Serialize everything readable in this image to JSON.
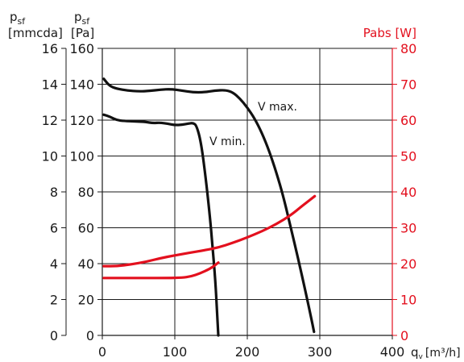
{
  "chart_data": {
    "type": "line",
    "axes": {
      "x": {
        "label": "q",
        "label_sub": "v",
        "label_unit": "[m³/h]",
        "range": [
          0,
          400
        ],
        "ticks": [
          "0",
          "100",
          "200",
          "300",
          "400"
        ]
      },
      "y_left_outer": {
        "label_main": "p",
        "label_sub": "sf",
        "label_unit": "[mmcda]",
        "range": [
          0,
          16
        ],
        "ticks": [
          "0",
          "2",
          "4",
          "6",
          "8",
          "10",
          "12",
          "14",
          "16"
        ]
      },
      "y_left_inner": {
        "label_main": "p",
        "label_sub": "sf",
        "label_unit": "[Pa]",
        "range": [
          0,
          160
        ],
        "ticks": [
          "0",
          "20",
          "40",
          "60",
          "80",
          "100",
          "120",
          "140",
          "160"
        ]
      },
      "y_right": {
        "label": "Pabs [W]",
        "range": [
          0,
          80
        ],
        "ticks": [
          "0",
          "10",
          "20",
          "30",
          "40",
          "50",
          "60",
          "70",
          "80"
        ],
        "color": "#e3101e"
      }
    },
    "grid": true,
    "series": [
      {
        "name": "V max.",
        "axis": "y_left_inner",
        "color": "#111111",
        "points": [
          [
            2,
            143
          ],
          [
            10,
            139
          ],
          [
            20,
            137.5
          ],
          [
            35,
            136.5
          ],
          [
            50,
            136
          ],
          [
            65,
            136.3
          ],
          [
            80,
            137
          ],
          [
            95,
            137.3
          ],
          [
            110,
            136.5
          ],
          [
            125,
            135.5
          ],
          [
            140,
            135.5
          ],
          [
            155,
            136.5
          ],
          [
            170,
            136.8
          ],
          [
            180,
            135.5
          ],
          [
            190,
            132
          ],
          [
            200,
            127
          ],
          [
            210,
            121
          ],
          [
            220,
            113
          ],
          [
            230,
            103
          ],
          [
            240,
            91
          ],
          [
            250,
            77
          ],
          [
            260,
            60
          ],
          [
            270,
            43
          ],
          [
            280,
            25
          ],
          [
            288,
            10
          ],
          [
            292,
            2
          ]
        ]
      },
      {
        "name": "V min.",
        "axis": "y_left_inner",
        "color": "#111111",
        "points": [
          [
            2,
            123
          ],
          [
            10,
            122
          ],
          [
            20,
            120
          ],
          [
            30,
            119.5
          ],
          [
            45,
            119.3
          ],
          [
            60,
            119
          ],
          [
            70,
            118.3
          ],
          [
            80,
            118.6
          ],
          [
            90,
            118
          ],
          [
            100,
            117.2
          ],
          [
            110,
            117.4
          ],
          [
            118,
            118
          ],
          [
            125,
            118.5
          ],
          [
            130,
            117
          ],
          [
            136,
            108
          ],
          [
            142,
            90
          ],
          [
            148,
            68
          ],
          [
            152,
            50
          ],
          [
            156,
            30
          ],
          [
            158,
            15
          ],
          [
            160,
            0
          ]
        ]
      },
      {
        "name": "",
        "axis": "y_right",
        "color": "#e3101e",
        "points": [
          [
            2,
            19.3
          ],
          [
            20,
            19.3
          ],
          [
            40,
            19.8
          ],
          [
            60,
            20.5
          ],
          [
            80,
            21.5
          ],
          [
            100,
            22.3
          ],
          [
            120,
            23
          ],
          [
            140,
            23.7
          ],
          [
            160,
            24.5
          ],
          [
            180,
            25.8
          ],
          [
            200,
            27.3
          ],
          [
            220,
            29
          ],
          [
            240,
            31
          ],
          [
            260,
            33.5
          ],
          [
            275,
            36
          ],
          [
            293,
            38.8
          ]
        ]
      },
      {
        "name": "",
        "axis": "y_right",
        "color": "#e3101e",
        "points": [
          [
            2,
            16
          ],
          [
            30,
            16
          ],
          [
            60,
            16
          ],
          [
            90,
            16
          ],
          [
            110,
            16.1
          ],
          [
            122,
            16.4
          ],
          [
            135,
            17.3
          ],
          [
            148,
            18.5
          ],
          [
            157,
            19.8
          ],
          [
            160,
            20.3
          ]
        ]
      }
    ],
    "annotations": [
      {
        "text": "V max.",
        "series": "V max."
      },
      {
        "text": "V min.",
        "series": "V min."
      }
    ]
  }
}
